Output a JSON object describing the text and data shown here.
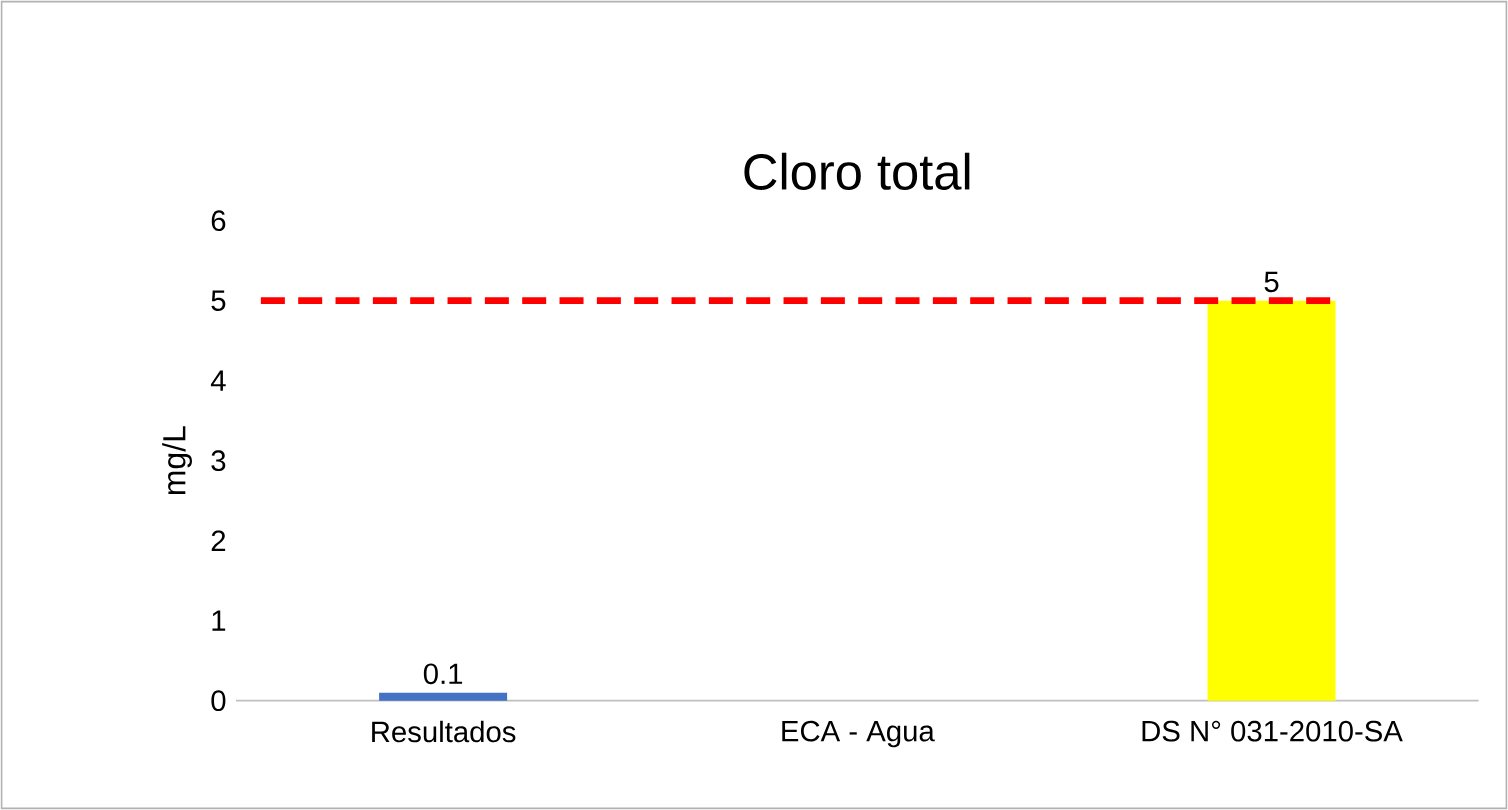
{
  "chart_data": {
    "type": "bar",
    "title": "Cloro total",
    "ylabel": "mg/L",
    "categories": [
      "Resultados",
      "ECA - Agua",
      "DS N° 031-2010-SA"
    ],
    "values": [
      0.1,
      null,
      5
    ],
    "colors": [
      "#4472c4",
      null,
      "#ffff00"
    ],
    "value_labels": [
      "0.1",
      null,
      "5"
    ],
    "ylim": [
      0,
      6
    ],
    "yticks": [
      0,
      1,
      2,
      3,
      4,
      5,
      6
    ],
    "ref_lines": [
      {
        "axis": "y",
        "value": 5,
        "color": "#ff0000",
        "line_style": "dashed"
      }
    ],
    "grid": false
  }
}
